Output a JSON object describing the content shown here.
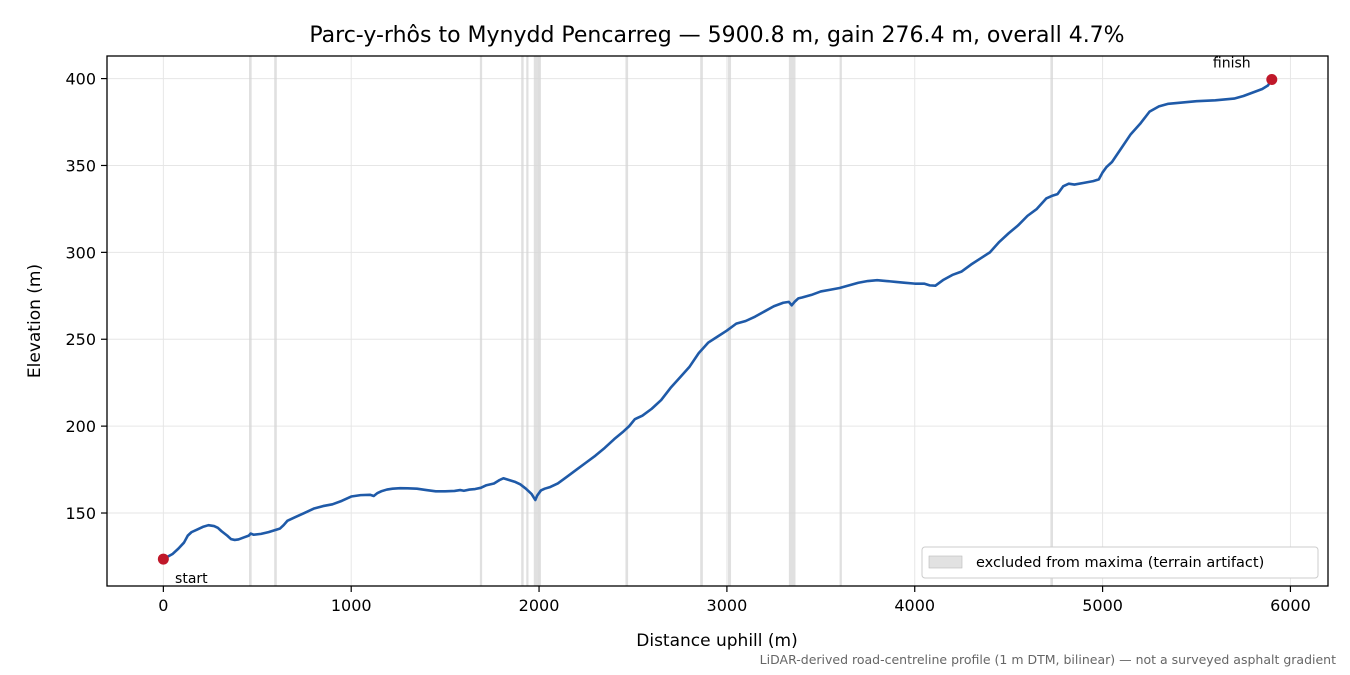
{
  "chart_data": {
    "type": "line",
    "title": "Parc-y-rhôs to Mynydd Pencarreg — 5900.8 m, gain 276.4 m, overall 4.7%",
    "xlabel": "Distance uphill (m)",
    "ylabel": "Elevation (m)",
    "xlim": [
      -300,
      6200
    ],
    "ylim": [
      108,
      413
    ],
    "xticks": [
      0,
      1000,
      2000,
      3000,
      4000,
      5000,
      6000
    ],
    "yticks": [
      150,
      200,
      250,
      300,
      350,
      400
    ],
    "grid": true,
    "legend_position": "lower-right",
    "colors": {
      "line": "#1f5aa8",
      "marker": "#c0182a",
      "excluded_band": "#d6d6d6",
      "grid": "#e6e6e6"
    },
    "series": [
      {
        "points": [
          [
            0,
            123.5
          ],
          [
            25,
            125
          ],
          [
            50,
            126.5
          ],
          [
            80,
            129.5
          ],
          [
            110,
            133
          ],
          [
            130,
            137
          ],
          [
            150,
            139
          ],
          [
            180,
            140.5
          ],
          [
            210,
            142
          ],
          [
            240,
            143
          ],
          [
            270,
            142.5
          ],
          [
            290,
            141.5
          ],
          [
            310,
            139.5
          ],
          [
            340,
            137
          ],
          [
            360,
            135
          ],
          [
            380,
            134.5
          ],
          [
            400,
            134.8
          ],
          [
            430,
            136
          ],
          [
            455,
            137
          ],
          [
            465,
            138.2
          ],
          [
            480,
            137.5
          ],
          [
            520,
            138
          ],
          [
            560,
            139
          ],
          [
            590,
            140
          ],
          [
            620,
            141
          ],
          [
            640,
            143
          ],
          [
            660,
            145.5
          ],
          [
            700,
            147.5
          ],
          [
            750,
            150
          ],
          [
            800,
            152.5
          ],
          [
            850,
            154
          ],
          [
            900,
            155
          ],
          [
            950,
            157
          ],
          [
            1000,
            159.5
          ],
          [
            1050,
            160.3
          ],
          [
            1100,
            160.5
          ],
          [
            1120,
            159.8
          ],
          [
            1140,
            161.5
          ],
          [
            1160,
            162.5
          ],
          [
            1190,
            163.5
          ],
          [
            1220,
            164
          ],
          [
            1260,
            164.3
          ],
          [
            1300,
            164.2
          ],
          [
            1350,
            164
          ],
          [
            1400,
            163.2
          ],
          [
            1450,
            162.5
          ],
          [
            1500,
            162.5
          ],
          [
            1550,
            162.7
          ],
          [
            1580,
            163.2
          ],
          [
            1600,
            162.8
          ],
          [
            1630,
            163.5
          ],
          [
            1660,
            163.8
          ],
          [
            1690,
            164.5
          ],
          [
            1720,
            166
          ],
          [
            1760,
            167
          ],
          [
            1790,
            169
          ],
          [
            1810,
            170
          ],
          [
            1840,
            169
          ],
          [
            1870,
            168
          ],
          [
            1900,
            166.5
          ],
          [
            1930,
            164
          ],
          [
            1960,
            161
          ],
          [
            1980,
            157.5
          ],
          [
            1990,
            160
          ],
          [
            2010,
            163
          ],
          [
            2030,
            164
          ],
          [
            2060,
            165
          ],
          [
            2100,
            167
          ],
          [
            2150,
            171
          ],
          [
            2200,
            175
          ],
          [
            2250,
            179
          ],
          [
            2300,
            183
          ],
          [
            2350,
            187.5
          ],
          [
            2400,
            192.5
          ],
          [
            2450,
            197
          ],
          [
            2480,
            200
          ],
          [
            2510,
            204
          ],
          [
            2550,
            206
          ],
          [
            2600,
            210
          ],
          [
            2650,
            215
          ],
          [
            2700,
            222
          ],
          [
            2750,
            228
          ],
          [
            2800,
            234
          ],
          [
            2850,
            242
          ],
          [
            2900,
            248
          ],
          [
            2950,
            251.5
          ],
          [
            3000,
            255
          ],
          [
            3050,
            259
          ],
          [
            3100,
            260.5
          ],
          [
            3150,
            263
          ],
          [
            3200,
            266
          ],
          [
            3250,
            269
          ],
          [
            3300,
            271
          ],
          [
            3330,
            271.5
          ],
          [
            3345,
            269.5
          ],
          [
            3360,
            271.5
          ],
          [
            3380,
            273.5
          ],
          [
            3400,
            274
          ],
          [
            3450,
            275.5
          ],
          [
            3500,
            277.5
          ],
          [
            3550,
            278.5
          ],
          [
            3600,
            279.5
          ],
          [
            3650,
            281
          ],
          [
            3700,
            282.5
          ],
          [
            3750,
            283.5
          ],
          [
            3800,
            284
          ],
          [
            3850,
            283.5
          ],
          [
            3900,
            283
          ],
          [
            3950,
            282.5
          ],
          [
            4000,
            282
          ],
          [
            4050,
            282
          ],
          [
            4080,
            281
          ],
          [
            4110,
            280.8
          ],
          [
            4150,
            284
          ],
          [
            4200,
            287
          ],
          [
            4250,
            289
          ],
          [
            4300,
            293
          ],
          [
            4350,
            296.5
          ],
          [
            4400,
            300
          ],
          [
            4450,
            306
          ],
          [
            4500,
            311
          ],
          [
            4550,
            315.5
          ],
          [
            4600,
            321
          ],
          [
            4650,
            325
          ],
          [
            4700,
            331
          ],
          [
            4730,
            332.5
          ],
          [
            4760,
            333.5
          ],
          [
            4790,
            338
          ],
          [
            4820,
            339.5
          ],
          [
            4850,
            339
          ],
          [
            4900,
            340
          ],
          [
            4950,
            341
          ],
          [
            4980,
            342
          ],
          [
            5000,
            346
          ],
          [
            5020,
            349
          ],
          [
            5050,
            352
          ],
          [
            5100,
            360
          ],
          [
            5150,
            368
          ],
          [
            5200,
            374
          ],
          [
            5250,
            381
          ],
          [
            5300,
            384
          ],
          [
            5350,
            385.5
          ],
          [
            5400,
            386
          ],
          [
            5500,
            387
          ],
          [
            5600,
            387.5
          ],
          [
            5700,
            388.5
          ],
          [
            5750,
            390
          ],
          [
            5800,
            392
          ],
          [
            5850,
            394
          ],
          [
            5880,
            396
          ],
          [
            5900.8,
            399.5
          ]
        ]
      }
    ],
    "excluded_ranges": [
      [
        456,
        470
      ],
      [
        590,
        604
      ],
      [
        1685,
        1697
      ],
      [
        1905,
        1918
      ],
      [
        1932,
        1942
      ],
      [
        1972,
        2010
      ],
      [
        2460,
        2474
      ],
      [
        2858,
        2872
      ],
      [
        3005,
        3022
      ],
      [
        3330,
        3365
      ],
      [
        3600,
        3612
      ],
      [
        4722,
        4736
      ]
    ],
    "markers": [
      {
        "x": 0,
        "y": 123.5,
        "label": "start"
      },
      {
        "x": 5900.8,
        "y": 399.5,
        "label": "finish"
      }
    ],
    "legend": {
      "excluded_label": "excluded from maxima (terrain artifact)"
    },
    "footnote": "LiDAR-derived road-centreline profile (1 m DTM, bilinear) — not a surveyed asphalt gradient"
  }
}
